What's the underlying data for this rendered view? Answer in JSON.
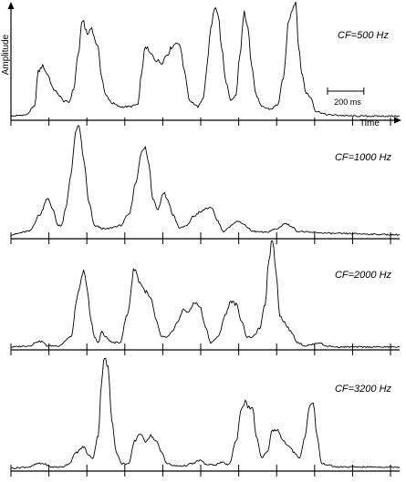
{
  "figure": {
    "ylabel": "Amplitude",
    "xlabel": "Time",
    "scale_bar_label": "200 ms",
    "scale_bar_ms": 200
  },
  "chart_data": [
    {
      "type": "line",
      "title": "CF=500 Hz",
      "xlabel": "Time",
      "ylabel": "Amplitude",
      "x_unit": "ms",
      "xlim": [
        0,
        2140
      ],
      "ylim": [
        0,
        1
      ],
      "tick_interval_ms": 209,
      "series": [
        {
          "values": [
            [
              0,
              0.02
            ],
            [
              80,
              0.03
            ],
            [
              130,
              0.1
            ],
            [
              150,
              0.4
            ],
            [
              175,
              0.45
            ],
            [
              200,
              0.38
            ],
            [
              235,
              0.25
            ],
            [
              265,
              0.2
            ],
            [
              290,
              0.15
            ],
            [
              320,
              0.14
            ],
            [
              345,
              0.25
            ],
            [
              370,
              0.55
            ],
            [
              395,
              0.85
            ],
            [
              420,
              0.72
            ],
            [
              445,
              0.78
            ],
            [
              465,
              0.66
            ],
            [
              480,
              0.6
            ],
            [
              500,
              0.35
            ],
            [
              520,
              0.2
            ],
            [
              560,
              0.13
            ],
            [
              600,
              0.1
            ],
            [
              650,
              0.1
            ],
            [
              700,
              0.12
            ],
            [
              720,
              0.4
            ],
            [
              740,
              0.62
            ],
            [
              770,
              0.55
            ],
            [
              800,
              0.5
            ],
            [
              830,
              0.48
            ],
            [
              860,
              0.55
            ],
            [
              890,
              0.62
            ],
            [
              915,
              0.66
            ],
            [
              935,
              0.6
            ],
            [
              955,
              0.4
            ],
            [
              985,
              0.15
            ],
            [
              1030,
              0.1
            ],
            [
              1060,
              0.18
            ],
            [
              1080,
              0.45
            ],
            [
              1100,
              0.78
            ],
            [
              1120,
              0.95
            ],
            [
              1140,
              0.9
            ],
            [
              1160,
              0.6
            ],
            [
              1185,
              0.3
            ],
            [
              1210,
              0.15
            ],
            [
              1240,
              0.2
            ],
            [
              1260,
              0.55
            ],
            [
              1285,
              0.9
            ],
            [
              1305,
              0.8
            ],
            [
              1325,
              0.45
            ],
            [
              1350,
              0.2
            ],
            [
              1380,
              0.1
            ],
            [
              1430,
              0.08
            ],
            [
              1470,
              0.12
            ],
            [
              1500,
              0.35
            ],
            [
              1530,
              0.85
            ],
            [
              1550,
              0.95
            ],
            [
              1568,
              1.0
            ],
            [
              1585,
              0.6
            ],
            [
              1600,
              0.4
            ],
            [
              1625,
              0.22
            ],
            [
              1650,
              0.18
            ],
            [
              1680,
              0.06
            ],
            [
              1750,
              0.03
            ],
            [
              1900,
              0.02
            ],
            [
              2140,
              0.02
            ]
          ]
        }
      ]
    },
    {
      "type": "line",
      "title": "CF=1000 Hz",
      "xlabel": "",
      "ylabel": "",
      "x_unit": "ms",
      "xlim": [
        0,
        2140
      ],
      "ylim": [
        0,
        1
      ],
      "tick_interval_ms": 209,
      "series": [
        {
          "values": [
            [
              0,
              0.02
            ],
            [
              100,
              0.05
            ],
            [
              160,
              0.2
            ],
            [
              200,
              0.35
            ],
            [
              230,
              0.25
            ],
            [
              260,
              0.1
            ],
            [
              280,
              0.1
            ],
            [
              300,
              0.25
            ],
            [
              330,
              0.55
            ],
            [
              355,
              0.92
            ],
            [
              375,
              1.0
            ],
            [
              400,
              0.7
            ],
            [
              430,
              0.3
            ],
            [
              460,
              0.1
            ],
            [
              520,
              0.07
            ],
            [
              600,
              0.1
            ],
            [
              650,
              0.2
            ],
            [
              690,
              0.5
            ],
            [
              715,
              0.75
            ],
            [
              740,
              0.8
            ],
            [
              760,
              0.65
            ],
            [
              780,
              0.35
            ],
            [
              810,
              0.25
            ],
            [
              840,
              0.4
            ],
            [
              865,
              0.33
            ],
            [
              890,
              0.2
            ],
            [
              930,
              0.08
            ],
            [
              970,
              0.1
            ],
            [
              1000,
              0.18
            ],
            [
              1040,
              0.22
            ],
            [
              1080,
              0.26
            ],
            [
              1110,
              0.25
            ],
            [
              1135,
              0.15
            ],
            [
              1170,
              0.05
            ],
            [
              1200,
              0.08
            ],
            [
              1230,
              0.13
            ],
            [
              1260,
              0.14
            ],
            [
              1290,
              0.1
            ],
            [
              1330,
              0.05
            ],
            [
              1400,
              0.04
            ],
            [
              1460,
              0.07
            ],
            [
              1510,
              0.12
            ],
            [
              1540,
              0.1
            ],
            [
              1580,
              0.05
            ],
            [
              1650,
              0.04
            ],
            [
              1800,
              0.03
            ],
            [
              2140,
              0.02
            ]
          ]
        }
      ]
    },
    {
      "type": "line",
      "title": "CF=2000 Hz",
      "xlabel": "",
      "ylabel": "",
      "x_unit": "ms",
      "xlim": [
        0,
        2140
      ],
      "ylim": [
        0,
        1
      ],
      "tick_interval_ms": 209,
      "series": [
        {
          "values": [
            [
              0,
              0.01
            ],
            [
              100,
              0.02
            ],
            [
              150,
              0.06
            ],
            [
              170,
              0.06
            ],
            [
              200,
              0.02
            ],
            [
              260,
              0.02
            ],
            [
              330,
              0.1
            ],
            [
              370,
              0.5
            ],
            [
              400,
              0.7
            ],
            [
              420,
              0.55
            ],
            [
              440,
              0.25
            ],
            [
              460,
              0.1
            ],
            [
              480,
              0.05
            ],
            [
              500,
              0.15
            ],
            [
              520,
              0.1
            ],
            [
              560,
              0.05
            ],
            [
              600,
              0.05
            ],
            [
              640,
              0.3
            ],
            [
              680,
              0.73
            ],
            [
              710,
              0.6
            ],
            [
              740,
              0.52
            ],
            [
              770,
              0.45
            ],
            [
              800,
              0.25
            ],
            [
              830,
              0.1
            ],
            [
              860,
              0.1
            ],
            [
              890,
              0.15
            ],
            [
              920,
              0.25
            ],
            [
              950,
              0.35
            ],
            [
              980,
              0.33
            ],
            [
              1010,
              0.42
            ],
            [
              1040,
              0.38
            ],
            [
              1070,
              0.2
            ],
            [
              1100,
              0.05
            ],
            [
              1140,
              0.1
            ],
            [
              1180,
              0.3
            ],
            [
              1210,
              0.43
            ],
            [
              1240,
              0.4
            ],
            [
              1270,
              0.25
            ],
            [
              1300,
              0.1
            ],
            [
              1330,
              0.1
            ],
            [
              1370,
              0.18
            ],
            [
              1400,
              0.4
            ],
            [
              1420,
              0.82
            ],
            [
              1440,
              1.0
            ],
            [
              1460,
              0.7
            ],
            [
              1480,
              0.3
            ],
            [
              1500,
              0.25
            ],
            [
              1520,
              0.2
            ],
            [
              1540,
              0.15
            ],
            [
              1580,
              0.05
            ],
            [
              1620,
              0.02
            ],
            [
              1650,
              0.03
            ],
            [
              1700,
              0.05
            ],
            [
              1730,
              0.02
            ],
            [
              1800,
              0.01
            ],
            [
              2140,
              0.01
            ]
          ]
        }
      ]
    },
    {
      "type": "line",
      "title": "CF=3200 Hz",
      "xlabel": "",
      "ylabel": "",
      "x_unit": "ms",
      "xlim": [
        0,
        2140
      ],
      "ylim": [
        0,
        1
      ],
      "tick_interval_ms": 209,
      "series": [
        {
          "values": [
            [
              0,
              0.01
            ],
            [
              100,
              0.02
            ],
            [
              150,
              0.05
            ],
            [
              180,
              0.05
            ],
            [
              220,
              0.02
            ],
            [
              280,
              0.02
            ],
            [
              320,
              0.05
            ],
            [
              360,
              0.15
            ],
            [
              400,
              0.2
            ],
            [
              430,
              0.12
            ],
            [
              450,
              0.1
            ],
            [
              480,
              0.3
            ],
            [
              500,
              0.8
            ],
            [
              515,
              1.0
            ],
            [
              535,
              0.9
            ],
            [
              555,
              0.45
            ],
            [
              580,
              0.15
            ],
            [
              610,
              0.05
            ],
            [
              650,
              0.05
            ],
            [
              680,
              0.25
            ],
            [
              710,
              0.32
            ],
            [
              740,
              0.25
            ],
            [
              770,
              0.3
            ],
            [
              800,
              0.25
            ],
            [
              830,
              0.15
            ],
            [
              860,
              0.05
            ],
            [
              900,
              0.03
            ],
            [
              950,
              0.03
            ],
            [
              1000,
              0.05
            ],
            [
              1040,
              0.08
            ],
            [
              1080,
              0.04
            ],
            [
              1120,
              0.04
            ],
            [
              1160,
              0.06
            ],
            [
              1200,
              0.04
            ],
            [
              1240,
              0.25
            ],
            [
              1270,
              0.55
            ],
            [
              1290,
              0.6
            ],
            [
              1310,
              0.55
            ],
            [
              1330,
              0.55
            ],
            [
              1350,
              0.3
            ],
            [
              1380,
              0.1
            ],
            [
              1410,
              0.15
            ],
            [
              1440,
              0.35
            ],
            [
              1470,
              0.35
            ],
            [
              1500,
              0.25
            ],
            [
              1530,
              0.2
            ],
            [
              1560,
              0.15
            ],
            [
              1590,
              0.1
            ],
            [
              1620,
              0.3
            ],
            [
              1645,
              0.58
            ],
            [
              1665,
              0.58
            ],
            [
              1685,
              0.3
            ],
            [
              1710,
              0.05
            ],
            [
              1800,
              0.02
            ],
            [
              2140,
              0.02
            ]
          ]
        }
      ]
    }
  ]
}
